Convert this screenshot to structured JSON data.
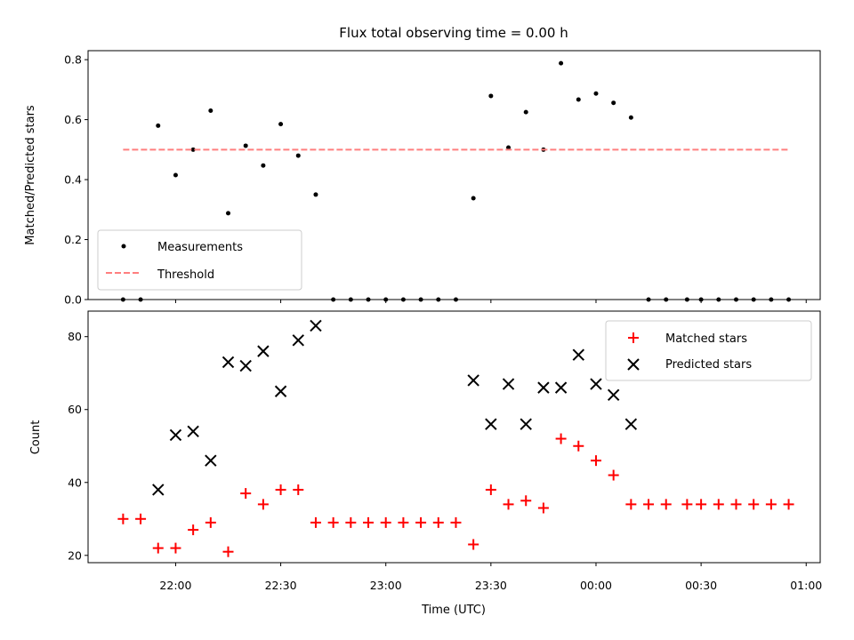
{
  "title": "Flux total observing time = 0.00 h",
  "xlabel": "Time (UTC)",
  "x_ticks": [
    "22:00",
    "22:30",
    "23:00",
    "23:30",
    "00:00",
    "00:30",
    "01:00"
  ],
  "colors": {
    "measurements": "#000000",
    "threshold": "#ff7f7f",
    "matched": "#ff0000",
    "predicted": "#000000"
  },
  "chart_data": [
    {
      "type": "scatter",
      "ylabel": "Matched/Predicted stars",
      "ylim": [
        0,
        0.83
      ],
      "xlim": [
        "21:35",
        "01:04"
      ],
      "y_ticks": [
        "0.0",
        "0.2",
        "0.4",
        "0.6",
        "0.8"
      ],
      "legend_position": "lower-left",
      "series": [
        {
          "name": "Measurements",
          "style": "dots",
          "points": [
            [
              "21:45",
              0.0
            ],
            [
              "21:50",
              0.0
            ],
            [
              "21:55",
              0.58
            ],
            [
              "22:00",
              0.415
            ],
            [
              "22:05",
              0.5
            ],
            [
              "22:10",
              0.63
            ],
            [
              "22:15",
              0.288
            ],
            [
              "22:20",
              0.513
            ],
            [
              "22:25",
              0.447
            ],
            [
              "22:30",
              0.585
            ],
            [
              "22:35",
              0.48
            ],
            [
              "22:40",
              0.35
            ],
            [
              "22:45",
              0.0
            ],
            [
              "22:50",
              0.0
            ],
            [
              "22:55",
              0.0
            ],
            [
              "23:00",
              0.0
            ],
            [
              "23:05",
              0.0
            ],
            [
              "23:10",
              0.0
            ],
            [
              "23:15",
              0.0
            ],
            [
              "23:20",
              0.0
            ],
            [
              "23:25",
              0.338
            ],
            [
              "23:30",
              0.679
            ],
            [
              "23:35",
              0.507
            ],
            [
              "23:40",
              0.625
            ],
            [
              "23:45",
              0.5
            ],
            [
              "23:50",
              0.788
            ],
            [
              "23:55",
              0.667
            ],
            [
              "00:00",
              0.687
            ],
            [
              "00:05",
              0.656
            ],
            [
              "00:10",
              0.607
            ],
            [
              "00:15",
              0.0
            ],
            [
              "00:20",
              0.0
            ],
            [
              "00:26",
              0.0
            ],
            [
              "00:30",
              0.0
            ],
            [
              "00:35",
              0.0
            ],
            [
              "00:40",
              0.0
            ],
            [
              "00:45",
              0.0
            ],
            [
              "00:50",
              0.0
            ],
            [
              "00:55",
              0.0
            ]
          ]
        },
        {
          "name": "Threshold",
          "style": "dashed-line",
          "points": [
            [
              "21:45",
              0.5
            ],
            [
              "00:55",
              0.5
            ]
          ]
        }
      ]
    },
    {
      "type": "scatter",
      "ylabel": "Count",
      "ylim": [
        18,
        87
      ],
      "xlim": [
        "21:35",
        "01:04"
      ],
      "y_ticks": [
        "20",
        "40",
        "60",
        "80"
      ],
      "legend_position": "upper-right",
      "series": [
        {
          "name": "Matched stars",
          "style": "plus",
          "points": [
            [
              "21:45",
              30
            ],
            [
              "21:50",
              30
            ],
            [
              "21:55",
              22
            ],
            [
              "22:00",
              22
            ],
            [
              "22:05",
              27
            ],
            [
              "22:10",
              29
            ],
            [
              "22:15",
              21
            ],
            [
              "22:20",
              37
            ],
            [
              "22:25",
              34
            ],
            [
              "22:30",
              38
            ],
            [
              "22:35",
              38
            ],
            [
              "22:40",
              29
            ],
            [
              "22:45",
              29
            ],
            [
              "22:50",
              29
            ],
            [
              "22:55",
              29
            ],
            [
              "23:00",
              29
            ],
            [
              "23:05",
              29
            ],
            [
              "23:10",
              29
            ],
            [
              "23:15",
              29
            ],
            [
              "23:20",
              29
            ],
            [
              "23:25",
              23
            ],
            [
              "23:30",
              38
            ],
            [
              "23:35",
              34
            ],
            [
              "23:40",
              35
            ],
            [
              "23:45",
              33
            ],
            [
              "23:50",
              52
            ],
            [
              "23:55",
              50
            ],
            [
              "00:00",
              46
            ],
            [
              "00:05",
              42
            ],
            [
              "00:10",
              34
            ],
            [
              "00:15",
              34
            ],
            [
              "00:20",
              34
            ],
            [
              "00:26",
              34
            ],
            [
              "00:30",
              34
            ],
            [
              "00:35",
              34
            ],
            [
              "00:40",
              34
            ],
            [
              "00:45",
              34
            ],
            [
              "00:50",
              34
            ],
            [
              "00:55",
              34
            ]
          ]
        },
        {
          "name": "Predicted stars",
          "style": "x",
          "points": [
            [
              "21:55",
              38
            ],
            [
              "22:00",
              53
            ],
            [
              "22:05",
              54
            ],
            [
              "22:10",
              46
            ],
            [
              "22:15",
              73
            ],
            [
              "22:20",
              72
            ],
            [
              "22:25",
              76
            ],
            [
              "22:30",
              65
            ],
            [
              "22:35",
              79
            ],
            [
              "22:40",
              83
            ],
            [
              "23:25",
              68
            ],
            [
              "23:30",
              56
            ],
            [
              "23:35",
              67
            ],
            [
              "23:40",
              56
            ],
            [
              "23:45",
              66
            ],
            [
              "23:50",
              66
            ],
            [
              "23:55",
              75
            ],
            [
              "00:00",
              67
            ],
            [
              "00:05",
              64
            ],
            [
              "00:10",
              56
            ]
          ]
        }
      ]
    }
  ]
}
